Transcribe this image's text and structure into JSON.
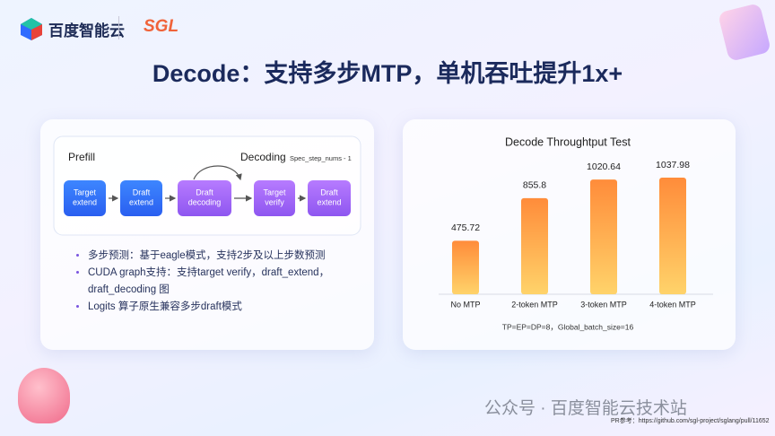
{
  "header": {
    "brand": "百度智能云",
    "partner": "SGL"
  },
  "title": "Decode：支持多步MTP，单机吞吐提升1x+",
  "diagram": {
    "prefill_label": "Prefill",
    "decoding_label": "Decoding",
    "loop_label": "Spec_step_nums - 1",
    "nodes": [
      {
        "label": "Target extend"
      },
      {
        "label": "Draft extend"
      },
      {
        "label": "Draft decoding"
      },
      {
        "label": "Target verify"
      },
      {
        "label": "Draft extend"
      }
    ]
  },
  "bullets": [
    "多步预测：基于eagle模式，支持2步及以上步数预测",
    "CUDA graph支持：支持target verify，draft_extend，draft_decoding 图",
    "Logits 算子原生兼容多步draft模式"
  ],
  "chart_data": {
    "type": "bar",
    "title": "Decode Throughtput Test",
    "categories": [
      "No MTP",
      "2-token MTP",
      "3-token MTP",
      "4-token MTP"
    ],
    "values": [
      475.72,
      855.8,
      1020.64,
      1037.98
    ],
    "color": "#ff8c3a",
    "caption": "TP=EP=DP=8，Global_batch_size=16"
  },
  "footer": {
    "watermark": "公众号 · 百度智能云技术站",
    "reference": "PR参考：https://github.com/sgl-project/sglang/pull/11652"
  }
}
